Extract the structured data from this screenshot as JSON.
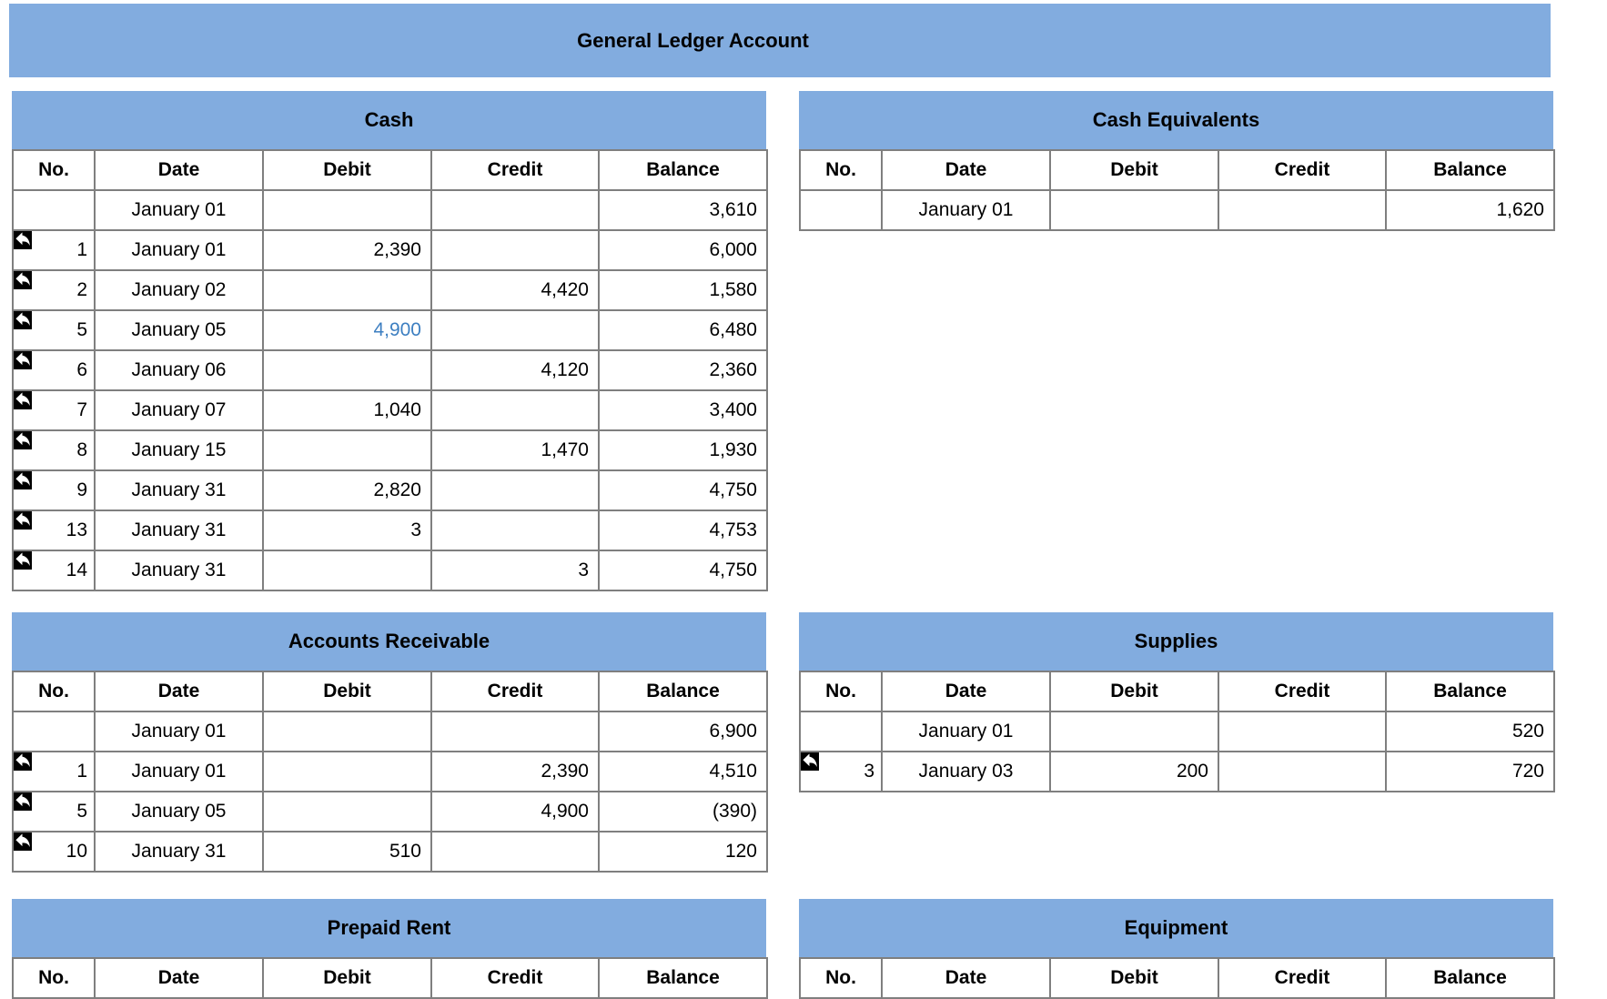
{
  "header": {
    "title": "General Ledger Account"
  },
  "columns": [
    "No.",
    "Date",
    "Debit",
    "Credit",
    "Balance"
  ],
  "colors": {
    "header_blue": "#82ACDF",
    "border_gray": "#7F7F7F",
    "highlight_text_blue": "#3D7FC1",
    "icon_bg_black": "#000000",
    "icon_arrow_white": "#FFFFFF"
  },
  "icons": {
    "row_link": "reply-arrow-icon"
  },
  "accounts": [
    {
      "name": "Cash",
      "rows": [
        {
          "no": "",
          "date": "January 01",
          "debit": "",
          "credit": "",
          "balance": "3,610",
          "arrow": false
        },
        {
          "no": "1",
          "date": "January 01",
          "debit": "2,390",
          "credit": "",
          "balance": "6,000",
          "arrow": true
        },
        {
          "no": "2",
          "date": "January 02",
          "debit": "",
          "credit": "4,420",
          "balance": "1,580",
          "arrow": true
        },
        {
          "no": "5",
          "date": "January 05",
          "debit": "4,900",
          "credit": "",
          "balance": "6,480",
          "arrow": true,
          "highlight": "debit"
        },
        {
          "no": "6",
          "date": "January 06",
          "debit": "",
          "credit": "4,120",
          "balance": "2,360",
          "arrow": true
        },
        {
          "no": "7",
          "date": "January 07",
          "debit": "1,040",
          "credit": "",
          "balance": "3,400",
          "arrow": true
        },
        {
          "no": "8",
          "date": "January 15",
          "debit": "",
          "credit": "1,470",
          "balance": "1,930",
          "arrow": true
        },
        {
          "no": "9",
          "date": "January 31",
          "debit": "2,820",
          "credit": "",
          "balance": "4,750",
          "arrow": true
        },
        {
          "no": "13",
          "date": "January 31",
          "debit": "3",
          "credit": "",
          "balance": "4,753",
          "arrow": true
        },
        {
          "no": "14",
          "date": "January 31",
          "debit": "",
          "credit": "3",
          "balance": "4,750",
          "arrow": true
        }
      ]
    },
    {
      "name": "Cash Equivalents",
      "rows": [
        {
          "no": "",
          "date": "January 01",
          "debit": "",
          "credit": "",
          "balance": "1,620",
          "arrow": false
        }
      ]
    },
    {
      "name": "Accounts Receivable",
      "rows": [
        {
          "no": "",
          "date": "January 01",
          "debit": "",
          "credit": "",
          "balance": "6,900",
          "arrow": false
        },
        {
          "no": "1",
          "date": "January 01",
          "debit": "",
          "credit": "2,390",
          "balance": "4,510",
          "arrow": true
        },
        {
          "no": "5",
          "date": "January 05",
          "debit": "",
          "credit": "4,900",
          "balance": "(390)",
          "arrow": true
        },
        {
          "no": "10",
          "date": "January 31",
          "debit": "510",
          "credit": "",
          "balance": "120",
          "arrow": true
        }
      ]
    },
    {
      "name": "Supplies",
      "rows": [
        {
          "no": "",
          "date": "January 01",
          "debit": "",
          "credit": "",
          "balance": "520",
          "arrow": false
        },
        {
          "no": "3",
          "date": "January 03",
          "debit": "200",
          "credit": "",
          "balance": "720",
          "arrow": true
        }
      ]
    },
    {
      "name": "Prepaid Rent",
      "rows": []
    },
    {
      "name": "Equipment",
      "rows": []
    }
  ]
}
